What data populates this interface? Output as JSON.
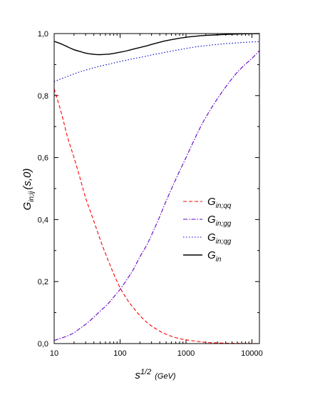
{
  "chart_data": {
    "type": "line",
    "title": "",
    "xlabel": {
      "main": "s",
      "sup": "1/2",
      "unit": "(GeV)"
    },
    "ylabel": {
      "main": "G",
      "sub": "in;ij",
      "rest": "(s,0)"
    },
    "xscale": "log",
    "xlim": [
      10,
      13000
    ],
    "ylim": [
      0,
      1
    ],
    "x_ticks": [
      10,
      100,
      1000,
      10000
    ],
    "x_tick_labels": [
      "10",
      "100",
      "1000",
      "10000"
    ],
    "y_ticks": [
      0,
      0.2,
      0.4,
      0.6,
      0.8,
      1.0
    ],
    "y_tick_labels": [
      "0,0",
      "0,2",
      "0,4",
      "0,6",
      "0,8",
      "1,0"
    ],
    "grid": false,
    "legend_position": "center-right",
    "series": [
      {
        "name": "G",
        "name_sub": "in;qq",
        "color": "#ff0000",
        "dash": "dashed",
        "x": [
          10,
          13,
          16,
          20,
          25,
          30,
          40,
          50,
          60,
          70,
          80,
          100,
          130,
          160,
          200,
          250,
          300,
          400,
          500,
          700,
          1000,
          1500,
          2000,
          3000,
          5000,
          7000,
          10000,
          13000
        ],
        "y": [
          0.822,
          0.74,
          0.665,
          0.6,
          0.53,
          0.47,
          0.395,
          0.335,
          0.29,
          0.255,
          0.225,
          0.18,
          0.14,
          0.115,
          0.09,
          0.07,
          0.057,
          0.04,
          0.03,
          0.019,
          0.012,
          0.007,
          0.004,
          0.002,
          0.001,
          0.0005,
          0.0003,
          0.0002
        ]
      },
      {
        "name": "G",
        "name_sub": "in;gg",
        "color": "#6600cc",
        "dash": "dash-dot",
        "x": [
          10,
          13,
          16,
          20,
          25,
          30,
          40,
          50,
          60,
          70,
          80,
          100,
          130,
          160,
          200,
          250,
          300,
          400,
          500,
          700,
          1000,
          1500,
          2000,
          3000,
          5000,
          7000,
          10000,
          13000
        ],
        "y": [
          0.01,
          0.018,
          0.025,
          0.035,
          0.05,
          0.062,
          0.085,
          0.105,
          0.12,
          0.135,
          0.15,
          0.175,
          0.21,
          0.24,
          0.28,
          0.315,
          0.35,
          0.41,
          0.46,
          0.53,
          0.6,
          0.68,
          0.73,
          0.79,
          0.855,
          0.89,
          0.92,
          0.945
        ]
      },
      {
        "name": "G",
        "name_sub": "in;qg",
        "color": "#0000cc",
        "dash": "dotted",
        "x": [
          10,
          13,
          16,
          20,
          25,
          30,
          40,
          50,
          60,
          70,
          80,
          100,
          130,
          160,
          200,
          250,
          300,
          400,
          500,
          700,
          1000,
          1500,
          2000,
          3000,
          5000,
          7000,
          10000,
          13000
        ],
        "y": [
          0.845,
          0.855,
          0.862,
          0.87,
          0.877,
          0.882,
          0.89,
          0.895,
          0.899,
          0.902,
          0.905,
          0.91,
          0.915,
          0.919,
          0.923,
          0.927,
          0.931,
          0.936,
          0.94,
          0.946,
          0.952,
          0.958,
          0.961,
          0.965,
          0.969,
          0.971,
          0.973,
          0.974
        ]
      },
      {
        "name": "G",
        "name_sub": "in",
        "color": "#000000",
        "dash": "solid",
        "x": [
          10,
          13,
          16,
          20,
          25,
          30,
          40,
          50,
          60,
          70,
          80,
          100,
          130,
          160,
          200,
          250,
          300,
          400,
          500,
          700,
          1000,
          1500,
          2000,
          3000,
          5000,
          7000,
          10000,
          13000
        ],
        "y": [
          0.975,
          0.966,
          0.957,
          0.948,
          0.942,
          0.937,
          0.933,
          0.932,
          0.933,
          0.934,
          0.936,
          0.94,
          0.945,
          0.95,
          0.955,
          0.96,
          0.965,
          0.972,
          0.977,
          0.983,
          0.988,
          0.992,
          0.994,
          0.996,
          0.998,
          0.999,
          0.9995,
          1.0
        ]
      }
    ]
  }
}
